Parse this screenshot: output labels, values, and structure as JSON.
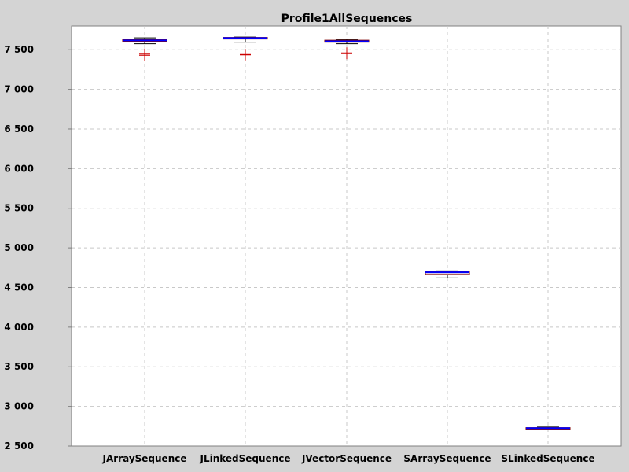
{
  "chart_data": {
    "type": "box",
    "title": "Profile1AllSequences",
    "xlabel": "",
    "ylabel": "",
    "ylim": [
      2500,
      7800
    ],
    "ytick_values": [
      2500,
      3000,
      3500,
      4000,
      4500,
      5000,
      5500,
      6000,
      6500,
      7000,
      7500
    ],
    "ytick_labels": [
      "2 500",
      "3 000",
      "3 500",
      "4 000",
      "4 500",
      "5 000",
      "5 500",
      "6 000",
      "6 500",
      "7 000",
      "7 500"
    ],
    "grid": true,
    "categories": [
      "JArraySequence",
      "JLinkedSequence",
      "JVectorSequence",
      "SArraySequence",
      "SLinkedSequence"
    ],
    "boxes": [
      {
        "category": "JArraySequence",
        "min": 7575,
        "q1": 7605,
        "median": 7615,
        "mean": 7618,
        "q3": 7630,
        "max": 7650,
        "outliers": [
          7430,
          7445
        ]
      },
      {
        "category": "JLinkedSequence",
        "min": 7595,
        "q1": 7635,
        "median": 7645,
        "mean": 7648,
        "q3": 7655,
        "max": 7660,
        "outliers": [
          7435,
          7440
        ]
      },
      {
        "category": "JVectorSequence",
        "min": 7575,
        "q1": 7595,
        "median": 7605,
        "mean": 7607,
        "q3": 7620,
        "max": 7630,
        "outliers": [
          7450,
          7460
        ]
      },
      {
        "category": "SArraySequence",
        "min": 4620,
        "q1": 4665,
        "median": 4690,
        "mean": 4692,
        "q3": 4700,
        "max": 4710,
        "outliers": []
      },
      {
        "category": "SLinkedSequence",
        "min": 2710,
        "q1": 2718,
        "median": 2725,
        "mean": 2726,
        "q3": 2732,
        "max": 2740,
        "outliers": []
      }
    ],
    "colors": {
      "background": "#d4d4d4",
      "plot_background": "#ffffff",
      "grid": "#c8c8c8",
      "box_border": "#800000",
      "box_fill": "#ffffff",
      "mean_line": "#0000ff",
      "median_line": "#800000",
      "whisker": "#000000",
      "outlier": "#cc0000"
    }
  }
}
